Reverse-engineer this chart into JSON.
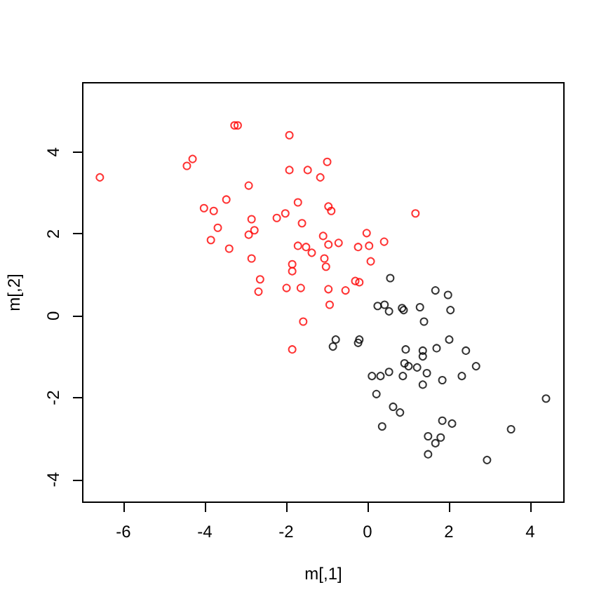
{
  "chart_data": {
    "type": "scatter",
    "xlabel": "m[,1]",
    "ylabel": "m[,2]",
    "marker": "circle",
    "xlim": [
      -7.0,
      4.83
    ],
    "ylim": [
      -4.55,
      5.69
    ],
    "xticks": [
      -6,
      -4,
      -2,
      0,
      2,
      4
    ],
    "yticks": [
      -4,
      -2,
      0,
      2,
      4
    ],
    "series": [
      {
        "color": "#000000",
        "x": [
          0.56,
          0.25,
          0.42,
          0.53,
          0.85,
          0.89,
          -0.78,
          -0.85,
          -0.2,
          -0.23,
          0.94,
          0.91,
          1.01,
          0.11,
          0.32,
          0.53,
          0.87,
          0.22,
          0.63,
          0.8,
          0.36,
          1.67,
          1.98,
          1.29,
          2.04,
          1.39,
          2.01,
          1.7,
          2.42,
          1.36,
          1.36,
          2.67,
          1.22,
          1.46,
          2.32,
          1.84,
          1.36,
          4.39,
          1.84,
          2.08,
          3.53,
          1.49,
          1.8,
          1.67,
          1.49,
          2.94
        ],
        "values": [
          0.92,
          0.24,
          0.27,
          0.11,
          0.19,
          0.14,
          -0.58,
          -0.75,
          -0.58,
          -0.66,
          -0.82,
          -1.16,
          -1.23,
          -1.47,
          -1.47,
          -1.37,
          -1.47,
          -1.91,
          -2.22,
          -2.36,
          -2.7,
          0.62,
          0.51,
          0.21,
          0.14,
          -0.14,
          -0.58,
          -0.79,
          -0.85,
          -0.85,
          -0.99,
          -1.23,
          -1.26,
          -1.4,
          -1.47,
          -1.57,
          -1.68,
          -2.02,
          -2.56,
          -2.63,
          -2.77,
          -2.94,
          -2.97,
          -3.11,
          -3.38,
          -3.52
        ]
      },
      {
        "color": "#ff0000",
        "x": [
          -6.58,
          -4.3,
          -4.44,
          -3.27,
          -3.19,
          -2.92,
          -3.47,
          -4.02,
          -3.78,
          -2.85,
          -3.68,
          -2.92,
          -2.78,
          -3.85,
          -3.4,
          -2.85,
          -2.64,
          -2.68,
          -1.92,
          -0.99,
          -1.92,
          -1.47,
          -1.16,
          -1.71,
          -0.96,
          -0.89,
          -2.02,
          -2.23,
          -1.61,
          -0.02,
          -1.09,
          0.41,
          -0.96,
          -0.71,
          -1.71,
          -1.51,
          -1.37,
          -0.23,
          0.04,
          -1.06,
          0.08,
          -1.85,
          -1.02,
          -1.85,
          -0.3,
          -0.2,
          -1.99,
          -1.64,
          -0.96,
          -0.54,
          -0.93,
          -1.58,
          -1.85,
          1.18
        ],
        "values": [
          3.38,
          3.83,
          3.66,
          4.65,
          4.65,
          3.18,
          2.84,
          2.63,
          2.56,
          2.36,
          2.15,
          1.98,
          2.09,
          1.85,
          1.64,
          1.4,
          0.89,
          0.59,
          4.41,
          3.76,
          3.56,
          3.56,
          3.38,
          2.77,
          2.67,
          2.56,
          2.5,
          2.39,
          2.26,
          2.02,
          1.95,
          1.81,
          1.74,
          1.78,
          1.71,
          1.68,
          1.54,
          1.68,
          1.71,
          1.4,
          1.33,
          1.26,
          1.2,
          1.09,
          0.85,
          0.82,
          0.68,
          0.68,
          0.65,
          0.62,
          0.27,
          -0.14,
          -0.82,
          2.5
        ]
      }
    ]
  }
}
